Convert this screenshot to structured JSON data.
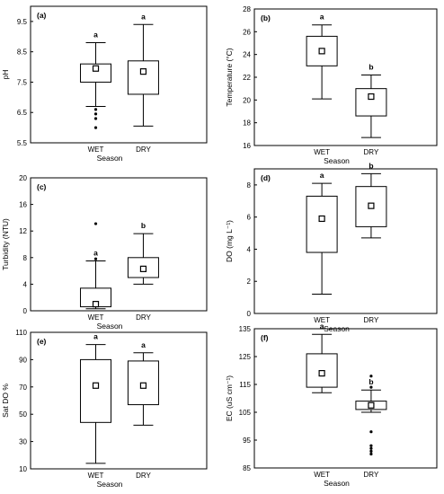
{
  "chart_data": [
    {
      "type": "box",
      "panel_label": "(a)",
      "xlabel": "Season",
      "ylabel": "pH",
      "ylim": [
        5.5,
        10.0
      ],
      "yticks": [
        5.5,
        6.5,
        7.5,
        8.5,
        9.5
      ],
      "categories": [
        "WET",
        "DRY"
      ],
      "boxes": [
        {
          "whisker_low": 6.7,
          "q1": 7.5,
          "q3": 8.1,
          "whisker_high": 8.8,
          "mean": 7.95,
          "outliers": [
            6.6,
            6.45,
            6.3,
            6.0
          ],
          "letter": "a"
        },
        {
          "whisker_low": 6.05,
          "q1": 7.1,
          "q3": 8.2,
          "whisker_high": 9.4,
          "mean": 7.85,
          "outliers": [],
          "letter": "a"
        }
      ]
    },
    {
      "type": "box",
      "panel_label": "(b)",
      "xlabel": "Season",
      "ylabel": "Temperature (°C)",
      "ylim": [
        16,
        28
      ],
      "yticks": [
        16,
        18,
        20,
        22,
        24,
        26,
        28
      ],
      "categories": [
        "WET",
        "DRY"
      ],
      "boxes": [
        {
          "whisker_low": 20.1,
          "q1": 23.0,
          "q3": 25.6,
          "whisker_high": 26.6,
          "mean": 24.3,
          "outliers": [],
          "letter": "a"
        },
        {
          "whisker_low": 16.7,
          "q1": 18.6,
          "q3": 21.0,
          "whisker_high": 22.2,
          "mean": 20.3,
          "outliers": [],
          "letter": "b"
        }
      ]
    },
    {
      "type": "box",
      "panel_label": "(c)",
      "xlabel": "Season",
      "ylabel": "Turbidity (NTU)",
      "ylim": [
        0,
        20
      ],
      "yticks": [
        0,
        4,
        8,
        12,
        16,
        20
      ],
      "categories": [
        "WET",
        "DRY"
      ],
      "boxes": [
        {
          "whisker_low": 0.3,
          "q1": 0.6,
          "q3": 3.4,
          "whisker_high": 7.5,
          "mean": 1.0,
          "outliers": [
            13.1,
            7.8
          ],
          "letter": "a"
        },
        {
          "whisker_low": 4.0,
          "q1": 5.0,
          "q3": 8.0,
          "whisker_high": 11.6,
          "mean": 6.3,
          "outliers": [],
          "letter": "b"
        }
      ]
    },
    {
      "type": "box",
      "panel_label": "(d)",
      "xlabel": "Season",
      "ylabel": "DO (mg L⁻¹)",
      "ylim": [
        0,
        9
      ],
      "yticks": [
        0,
        2,
        4,
        6,
        8
      ],
      "categories": [
        "WET",
        "DRY"
      ],
      "boxes": [
        {
          "whisker_low": 1.2,
          "q1": 3.8,
          "q3": 7.3,
          "whisker_high": 8.1,
          "mean": 5.9,
          "outliers": [],
          "letter": "a"
        },
        {
          "whisker_low": 4.7,
          "q1": 5.4,
          "q3": 7.9,
          "whisker_high": 8.7,
          "mean": 6.7,
          "outliers": [],
          "letter": "b"
        }
      ]
    },
    {
      "type": "box",
      "panel_label": "(e)",
      "xlabel": "Season",
      "ylabel": "Sat DO %",
      "ylim": [
        10,
        110
      ],
      "yticks": [
        10,
        30,
        50,
        70,
        90,
        110
      ],
      "categories": [
        "WET",
        "DRY"
      ],
      "boxes": [
        {
          "whisker_low": 14,
          "q1": 44,
          "q3": 90,
          "whisker_high": 101,
          "mean": 71,
          "outliers": [],
          "letter": "a"
        },
        {
          "whisker_low": 42,
          "q1": 57,
          "q3": 89,
          "whisker_high": 95,
          "mean": 71,
          "outliers": [],
          "letter": "a"
        }
      ]
    },
    {
      "type": "box",
      "panel_label": "(f)",
      "xlabel": "Season",
      "ylabel": "EC (uS cm⁻¹)",
      "ylim": [
        85,
        135
      ],
      "yticks": [
        85,
        95,
        105,
        115,
        125,
        135
      ],
      "categories": [
        "WET",
        "DRY"
      ],
      "boxes": [
        {
          "whisker_low": 112,
          "q1": 114,
          "q3": 126,
          "whisker_high": 133,
          "mean": 119,
          "outliers": [],
          "letter": "a"
        },
        {
          "whisker_low": 105,
          "q1": 106,
          "q3": 109,
          "whisker_high": 113,
          "mean": 107.5,
          "outliers": [
            118,
            114,
            98,
            93,
            92,
            91,
            90
          ],
          "letter": "b"
        }
      ]
    }
  ]
}
